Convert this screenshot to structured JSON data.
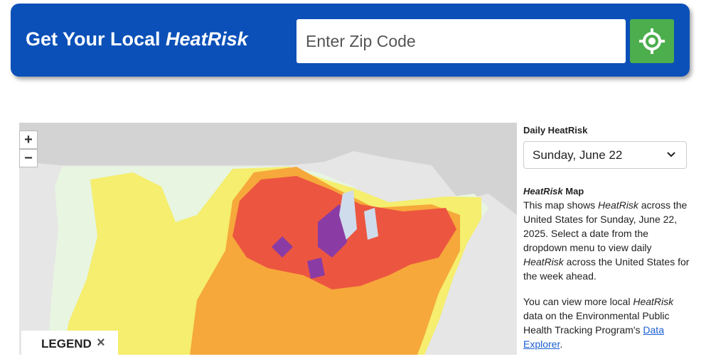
{
  "header": {
    "title": [
      "Get Your Local ",
      "HeatRisk"
    ],
    "zip_placeholder": "Enter Zip Code"
  },
  "map": {
    "zoom_in": "+",
    "zoom_out": "−",
    "legend": {
      "title": "LEGEND",
      "close": "×"
    }
  },
  "sidebar": {
    "select_label": "Daily HeatRisk",
    "selected_date": "Sunday, June 22",
    "section_title": [
      "HeatRisk",
      " Map"
    ],
    "paragraphs": [
      [
        "This map shows ",
        "HeatRisk",
        " across the United States for Sunday, June 22, 2025. Select a date from the dropdown menu to view daily ",
        "HeatRisk",
        " across the United States for the week ahead."
      ],
      [
        "You can view more local ",
        "HeatRisk",
        " data on the Environmental Public Health Tracking Program's ",
        "Data Explorer",
        "."
      ]
    ]
  }
}
